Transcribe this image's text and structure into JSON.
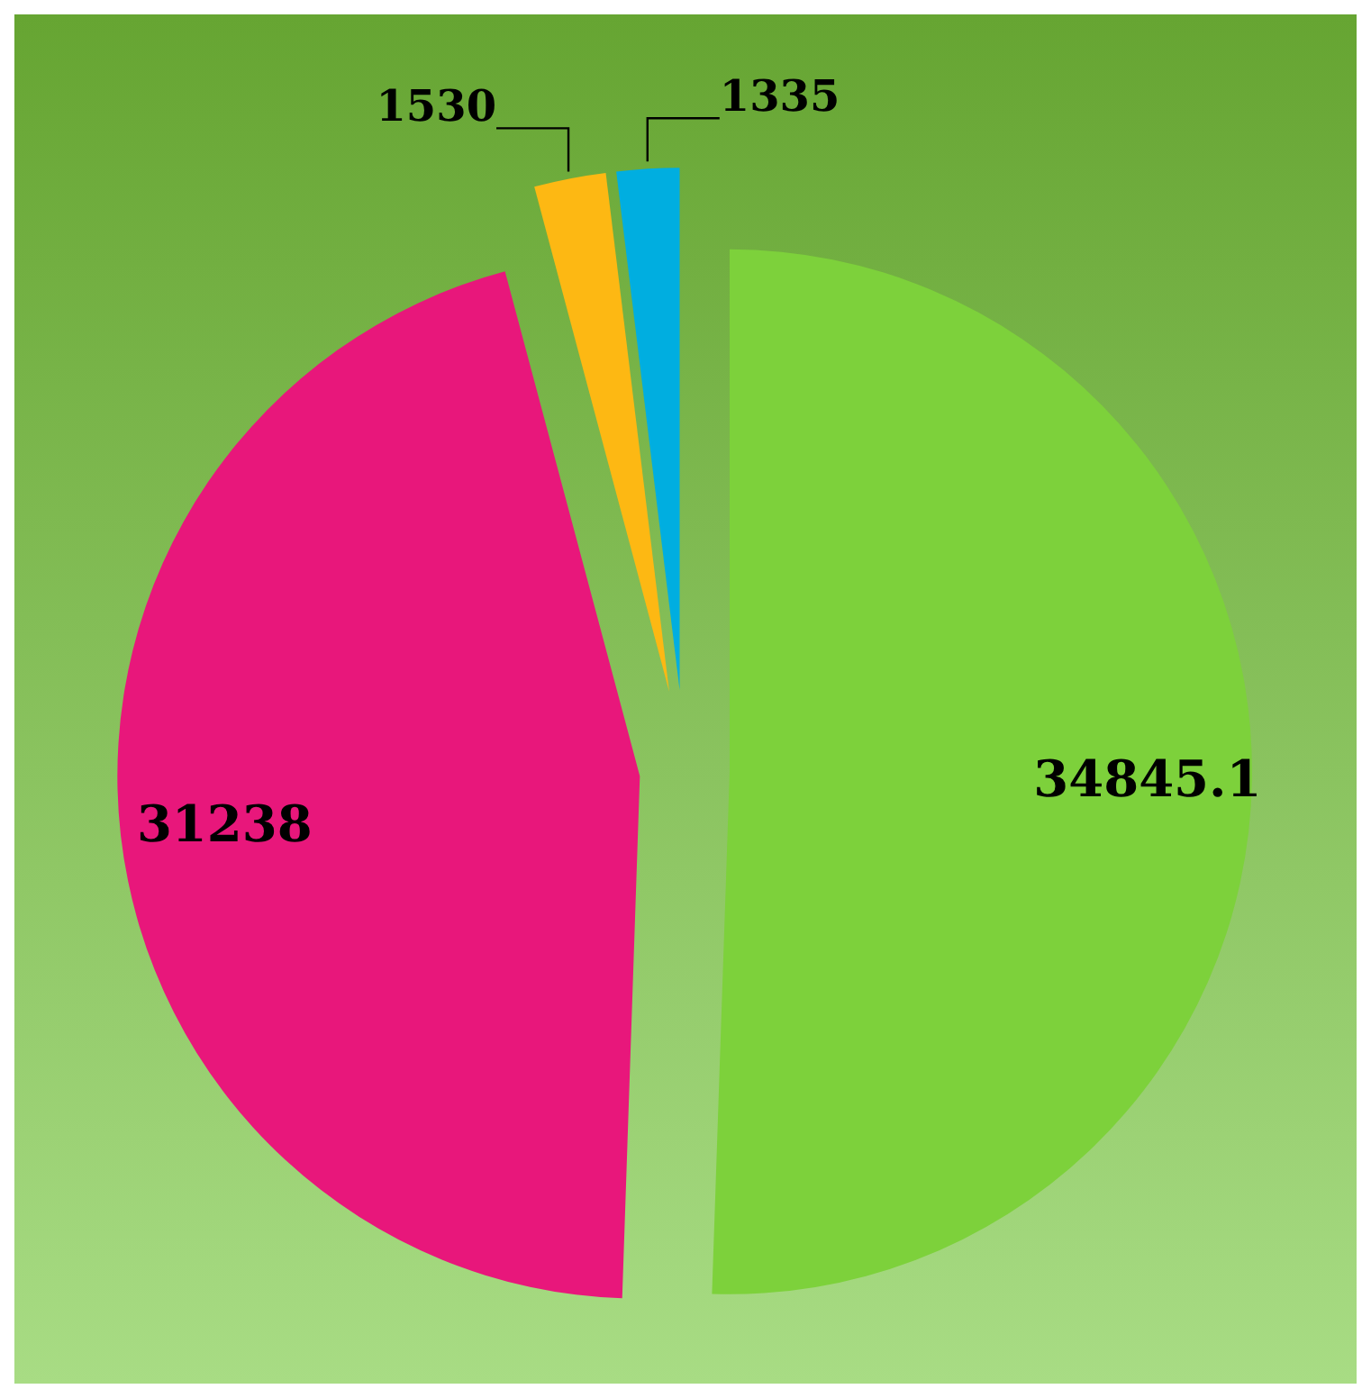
{
  "chart_data": {
    "type": "pie",
    "values": [
      34845.1,
      31238,
      1530,
      1335
    ],
    "colors": [
      "#7dd13b",
      "#e8177b",
      "#fdb813",
      "#00aee0"
    ],
    "data_labels": true
  }
}
